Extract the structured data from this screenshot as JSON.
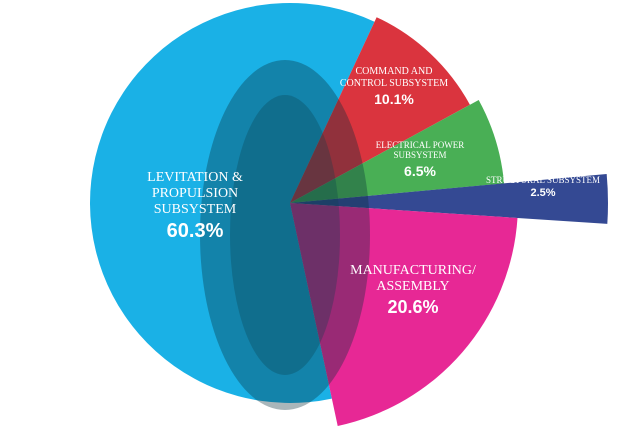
{
  "chart_data": {
    "type": "pie",
    "categories": [
      "COMMAND AND CONTROL SUBSYSTEM",
      "ELECTRICAL POWER SUBSYSTEM",
      "STRUCTURAL SUBSYSTEM",
      "MANUFACTURING/ ASSEMBLY",
      "LEVITATION & PROPULSION SUBSYSTEM"
    ],
    "values": [
      10.1,
      6.5,
      2.5,
      20.6,
      60.3
    ],
    "value_labels": [
      "10.1%",
      "6.5%",
      "2.5%",
      "20.6%",
      "60.3%"
    ],
    "colors": [
      "#d7232e",
      "#3aa846",
      "#233a8a",
      "#e5168c",
      "#1ab1e6"
    ]
  }
}
